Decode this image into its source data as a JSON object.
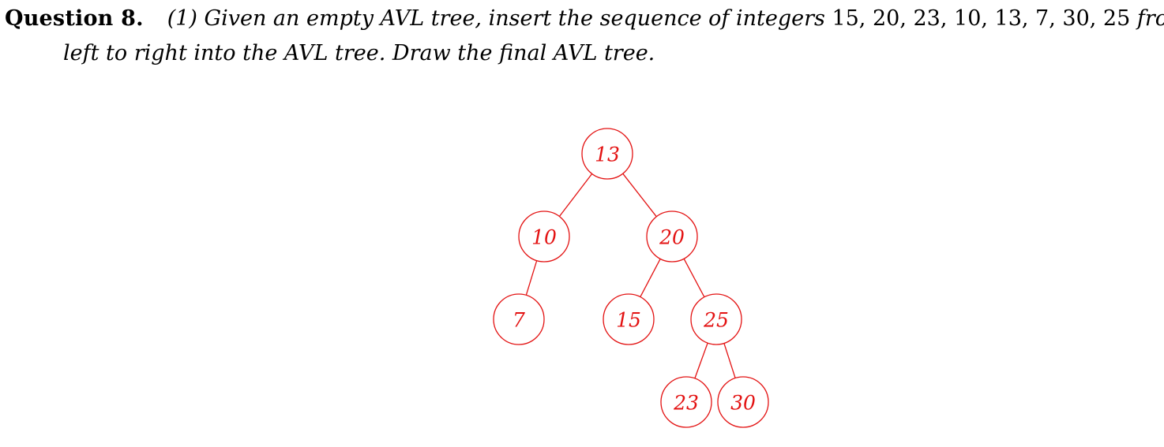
{
  "question": {
    "label": "Question 8.",
    "text_before": "(1) Given an empty AVL tree, insert the sequence of integers",
    "sequence": "15, 20, 23, 10, 13, 7, 30, 25",
    "text_after": "from",
    "line2": "left to right into the AVL tree. Draw the final AVL tree."
  },
  "tree": {
    "color": "#e31212",
    "nodes": [
      {
        "id": "n13",
        "label": "13",
        "parent": null
      },
      {
        "id": "n10",
        "label": "10",
        "parent": "n13"
      },
      {
        "id": "n20",
        "label": "20",
        "parent": "n13"
      },
      {
        "id": "n7",
        "label": "7",
        "parent": "n10"
      },
      {
        "id": "n15",
        "label": "15",
        "parent": "n20"
      },
      {
        "id": "n25",
        "label": "25",
        "parent": "n20"
      },
      {
        "id": "n23",
        "label": "23",
        "parent": "n25"
      },
      {
        "id": "n30",
        "label": "30",
        "parent": "n25"
      }
    ]
  }
}
